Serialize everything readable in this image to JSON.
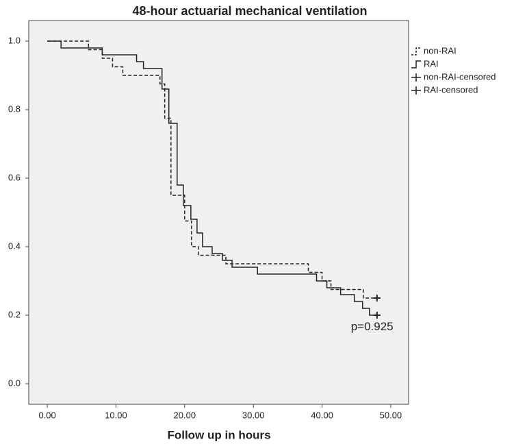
{
  "chart_data": {
    "type": "step",
    "title": "48-hour actuarial mechanical ventilation",
    "x_label": "Follow up in hours",
    "annotation": "p=0.925",
    "xlim": [
      -2.7,
      52.6
    ],
    "ylim": [
      -0.06,
      1.06
    ],
    "xticks": [
      {
        "value": 0,
        "label": "0.00"
      },
      {
        "value": 10,
        "label": "10.00"
      },
      {
        "value": 20,
        "label": "20.00"
      },
      {
        "value": 30,
        "label": "30.00"
      },
      {
        "value": 40,
        "label": "40.00"
      },
      {
        "value": 50,
        "label": "50.00"
      }
    ],
    "yticks": [
      {
        "value": 0,
        "label": "0.0"
      },
      0.2,
      0.4,
      0.6,
      0.8,
      {
        "value": 1,
        "label": "1.0"
      }
    ],
    "legend": "right",
    "series": [
      {
        "name": "non-RAI",
        "color": "#222222",
        "dash": true,
        "x": [
          0,
          6,
          8,
          9.5,
          11,
          16.4,
          17.1,
          18,
          20,
          21,
          22,
          26,
          38,
          40,
          41.3,
          46,
          48
        ],
        "values": [
          1,
          0.975,
          0.95,
          0.925,
          0.9,
          0.875,
          0.775,
          0.55,
          0.475,
          0.4,
          0.375,
          0.35,
          0.325,
          0.3,
          0.275,
          0.25,
          0.25
        ]
      },
      {
        "name": "RAI",
        "color": "#222222",
        "dash": false,
        "x": [
          0,
          2,
          8,
          13,
          14,
          16.7,
          17.7,
          18.9,
          19.8,
          20.9,
          21.8,
          22.6,
          24,
          25.5,
          26.9,
          30.6,
          39.2,
          40.7,
          42.7,
          44.7,
          45.9,
          46.9,
          48
        ],
        "values": [
          1,
          0.98,
          0.96,
          0.94,
          0.92,
          0.86,
          0.76,
          0.58,
          0.52,
          0.48,
          0.44,
          0.4,
          0.38,
          0.36,
          0.34,
          0.32,
          0.3,
          0.28,
          0.26,
          0.24,
          0.22,
          0.2,
          0.2
        ]
      },
      {
        "name": "non-RAI-censored",
        "color": "#222222",
        "marker": "+",
        "x": [
          48
        ],
        "values": [
          0.25
        ]
      },
      {
        "name": "RAI-censored",
        "color": "#222222",
        "marker": "+",
        "x": [
          48
        ],
        "values": [
          0.2
        ]
      }
    ]
  }
}
